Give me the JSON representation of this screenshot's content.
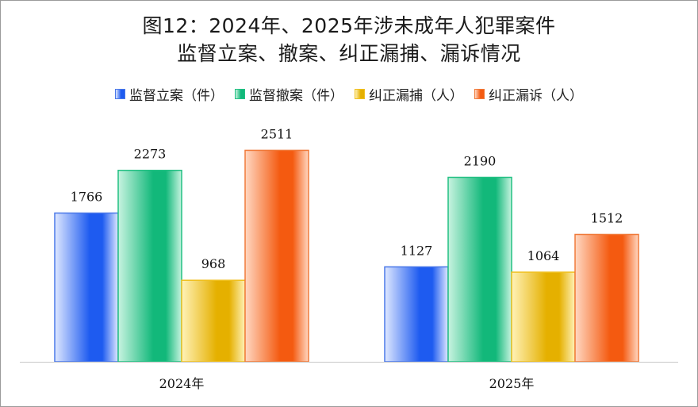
{
  "chart_data": {
    "type": "bar",
    "title_line1": "图12：2024年、2025年涉未成年人犯罪案件",
    "title_line2": "监督立案、撤案、纠正漏捕、漏诉情况",
    "categories": [
      "2024年",
      "2025年"
    ],
    "series": [
      {
        "name": "监督立案（件）",
        "values": [
          1766,
          1127
        ],
        "color": "#1e5bf0",
        "light": "#dfe8ff",
        "border": "#4a78e8"
      },
      {
        "name": "监督撤案（件）",
        "values": [
          2273,
          2190
        ],
        "color": "#12b87a",
        "light": "#c8f3e0",
        "border": "#22c083"
      },
      {
        "name": "纠正漏捕（人）",
        "values": [
          968,
          1064
        ],
        "color": "#e5b000",
        "light": "#fff2b8",
        "border": "#f0c020"
      },
      {
        "name": "纠正漏诉（人）",
        "values": [
          2511,
          1512
        ],
        "color": "#f45a10",
        "light": "#ffd8c2",
        "border": "#f07a3a"
      }
    ],
    "xlabel": "",
    "ylabel": "",
    "ylim": [
      0,
      2600
    ],
    "grid": false,
    "legend_position": "top-center"
  }
}
